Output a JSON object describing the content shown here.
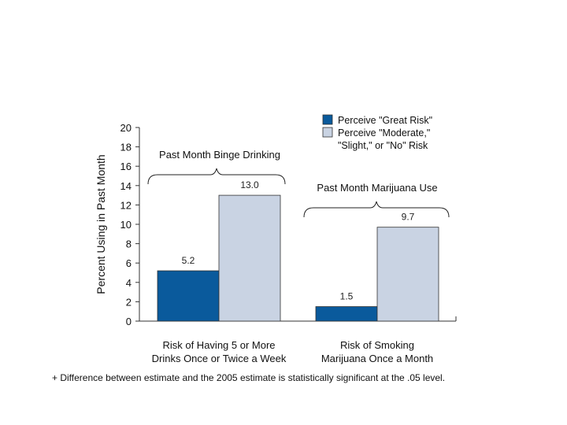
{
  "chart_data": {
    "type": "bar",
    "ylabel": "Percent Using in Past Month",
    "ylim": [
      0,
      20
    ],
    "ytick_step": 2,
    "y_ticks": [
      "0",
      "2",
      "4",
      "6",
      "8",
      "10",
      "12",
      "14",
      "16",
      "18",
      "20"
    ],
    "grid": false,
    "legend_position": "top-right",
    "groups": [
      {
        "title": "Past Month Binge Drinking",
        "category_line1": "Risk of Having 5 or More",
        "category_line2": "Drinks Once or Twice a Week"
      },
      {
        "title": "Past Month Marijuana Use",
        "category_line1": "Risk of Smoking",
        "category_line2": "Marijuana Once a Month"
      }
    ],
    "series": [
      {
        "name_line1": "Perceive \"Great Risk\"",
        "name_line2": "",
        "color": "#0a5a9c",
        "values": [
          5.2,
          1.5
        ],
        "labels": [
          "5.2",
          "1.5"
        ]
      },
      {
        "name_line1": "Perceive \"Moderate,\"",
        "name_line2": "\"Slight,\" or \"No\" Risk",
        "color": "#c9d3e3",
        "values": [
          13.0,
          9.7
        ],
        "labels": [
          "13.0",
          "9.7"
        ]
      }
    ]
  },
  "footnote": "+ Difference between estimate and the 2005 estimate is statistically significant at the .05 level."
}
